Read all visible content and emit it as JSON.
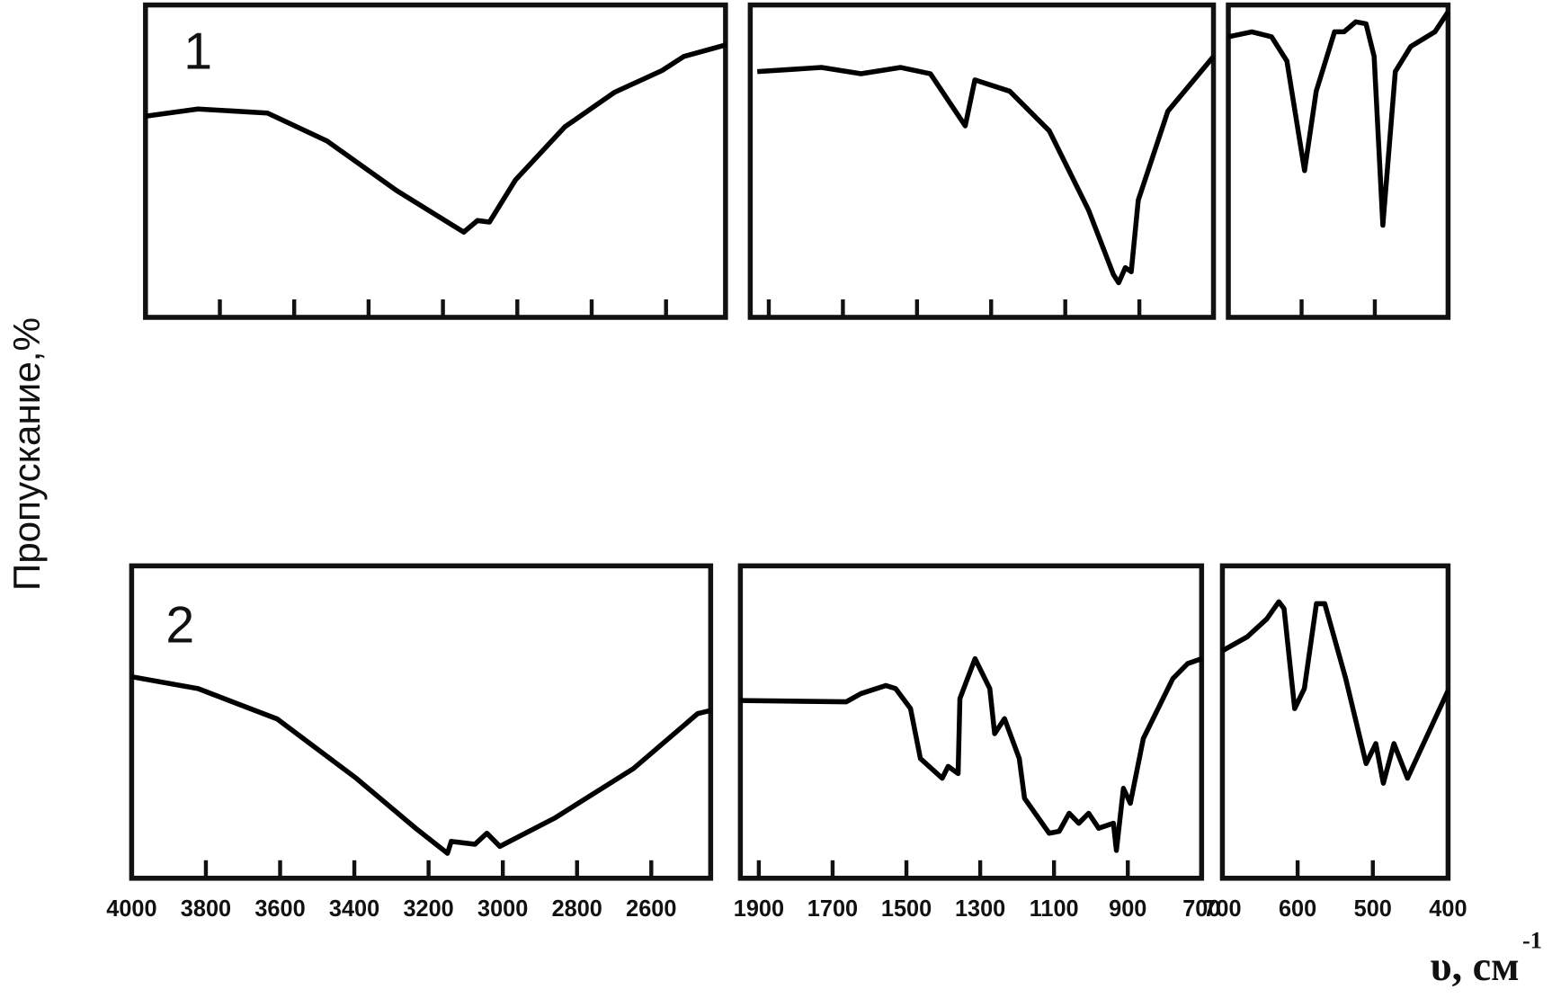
{
  "chart_data": {
    "type": "line",
    "y_label": "Пропускание,%",
    "x_label": "υ, см",
    "x_label_superscript": "-1",
    "ylim": [
      0,
      100
    ],
    "panels": [
      {
        "xlim": [
          4000,
          2440
        ],
        "xticks": [
          4000,
          3800,
          3600,
          3400,
          3200,
          3000,
          2800,
          2600
        ]
      },
      {
        "xlim": [
          1950,
          700
        ],
        "xticks": [
          1900,
          1700,
          1500,
          1300,
          1100,
          900,
          700
        ]
      },
      {
        "xlim": [
          700,
          400
        ],
        "xticks": [
          700,
          600,
          500,
          400
        ]
      }
    ],
    "spectra": [
      {
        "name": "1",
        "color": "#000000",
        "segments": [
          {
            "x": [
              4000,
              3859,
              3672,
              3512,
              3325,
              3144,
              3107,
              3075,
              3005,
              2872,
              2739,
              2611,
              2552,
              2437
            ],
            "values": [
              64.4,
              66.7,
              65.4,
              56.5,
              40.6,
              27.3,
              31,
              30.5,
              44,
              61,
              72,
              79,
              83.5,
              87.3
            ]
          },
          {
            "x": [
              1931,
              1758,
              1651,
              1544,
              1464,
              1370,
              1344,
              1250,
              1143,
              1037,
              970,
              956,
              938,
              922,
              903,
              823,
              700
            ],
            "values": [
              78.7,
              80,
              78,
              80,
              78,
              61.3,
              76,
              72.4,
              59.7,
              34.3,
              13.7,
              11.1,
              15.9,
              14.6,
              37.5,
              66,
              83.5
            ]
          },
          {
            "x": [
              700,
              668,
              641,
              620,
              596,
              580,
              555,
              542,
              526,
              512,
              501,
              489,
              472,
              451,
              418,
              400
            ],
            "values": [
              89.8,
              91.4,
              89.8,
              82,
              47,
              72.4,
              91.4,
              91.4,
              94.6,
              94,
              83.5,
              29.5,
              78.7,
              86.7,
              91.4,
              97.8
            ]
          }
        ]
      },
      {
        "name": "2",
        "color": "#000000",
        "segments": [
          {
            "x": [
              4000,
              3821,
              3608,
              3395,
              3235,
              3149,
              3139,
              3075,
              3043,
              3008,
              2861,
              2648,
              2475,
              2440
            ],
            "values": [
              64.5,
              60.7,
              51,
              32,
              16,
              8,
              11.8,
              10.9,
              14.4,
              10.2,
              19.2,
              35.1,
              52.7,
              53.7
            ]
          },
          {
            "x": [
              1950,
              1663,
              1623,
              1556,
              1529,
              1489,
              1462,
              1403,
              1387,
              1360,
              1355,
              1314,
              1274,
              1261,
              1234,
              1194,
              1180,
              1113,
              1086,
              1059,
              1033,
              1006,
              979,
              939,
              931,
              912,
              893,
              858,
              778,
              738,
              700
            ],
            "values": [
              56.9,
              56.5,
              59.1,
              61.7,
              60.7,
              54.3,
              38.3,
              32,
              35.8,
              33.5,
              57.5,
              70.3,
              60.7,
              46.3,
              51.1,
              38.3,
              25.6,
              14.4,
              15,
              20.8,
              17.6,
              20.8,
              16,
              17.6,
              8.9,
              28.8,
              24,
              44.7,
              63.9,
              68.7,
              70.3
            ]
          },
          {
            "x": [
              700,
              667,
              641,
              625,
              618,
              604,
              591,
              575,
              564,
              536,
              509,
              496,
              486,
              472,
              454,
              400
            ],
            "values": [
              72.8,
              77.3,
              83,
              88.5,
              86.3,
              54.3,
              60.7,
              87.9,
              87.9,
              63.9,
              36.7,
              43.1,
              30.4,
              43.1,
              32,
              60.1
            ]
          }
        ]
      }
    ]
  }
}
